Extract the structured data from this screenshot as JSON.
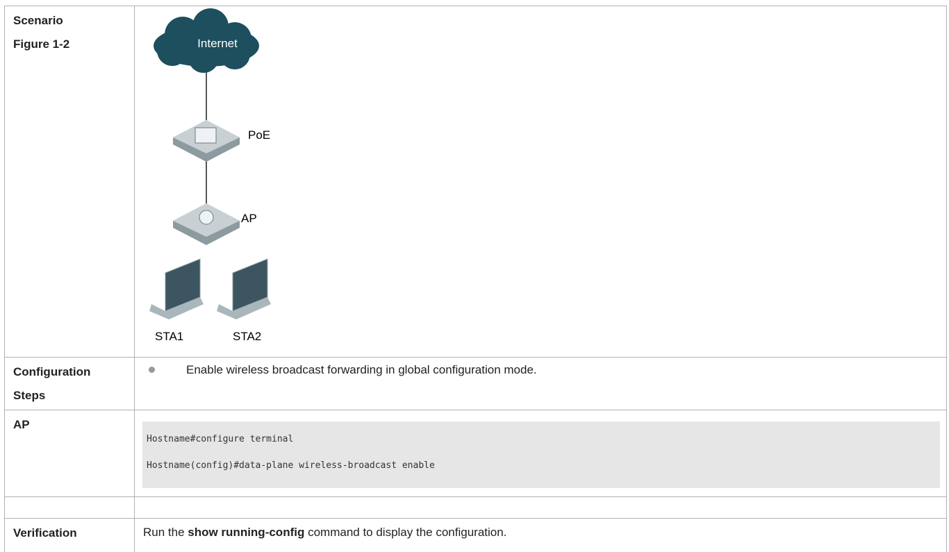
{
  "rows": [
    {
      "label": [
        "Scenario",
        "Figure 1-2"
      ],
      "diagram": {
        "nodes": [
          "Internet",
          "PoE",
          "AP",
          "STA1",
          "STA2"
        ]
      }
    },
    {
      "label": "Configuration Steps",
      "bullets": [
        "Enable wireless broadcast forwarding in global configuration mode."
      ]
    },
    {
      "label": "AP",
      "code": [
        "Hostname#configure terminal",
        "Hostname(config)#data-plane wireless-broadcast enable"
      ]
    },
    {
      "label": "Verification",
      "text": [
        "Run the ",
        "show running-config",
        " command to display the configuration."
      ]
    }
  ]
}
